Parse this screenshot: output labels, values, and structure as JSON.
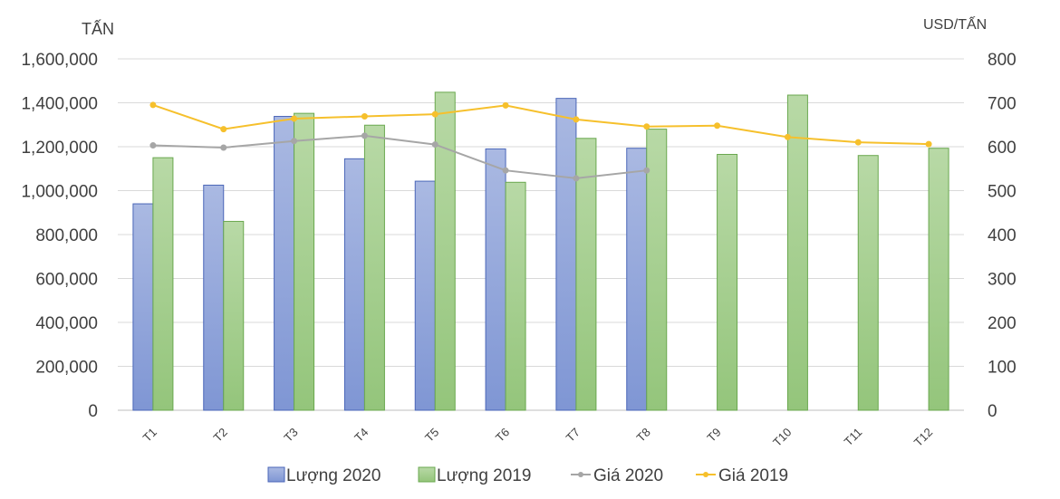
{
  "chart_data": {
    "type": "bar",
    "categories": [
      "T1",
      "T2",
      "T3",
      "T4",
      "T5",
      "T6",
      "T7",
      "T8",
      "T9",
      "T10",
      "T11",
      "T12"
    ],
    "y_left": {
      "label": "TẤN",
      "min": 0,
      "max": 1600000,
      "ticks": [
        "0",
        "200,000",
        "400,000",
        "600,000",
        "800,000",
        "1,000,000",
        "1,200,000",
        "1,400,000",
        "1,600,000"
      ],
      "tick_values": [
        0,
        200000,
        400000,
        600000,
        800000,
        1000000,
        1200000,
        1400000,
        1600000
      ]
    },
    "y_right": {
      "label": "USD/TẤN",
      "min": 0,
      "max": 800,
      "ticks": [
        "0",
        "100",
        "200",
        "300",
        "400",
        "500",
        "600",
        "700",
        "800"
      ],
      "tick_values": [
        0,
        100,
        200,
        300,
        400,
        500,
        600,
        700,
        800
      ]
    },
    "grid": true,
    "legend_position": "bottom",
    "series": [
      {
        "name": "Lượng 2020",
        "type": "bar",
        "axis": "left",
        "color": "#8fa3db",
        "values": [
          940000,
          1025000,
          1338000,
          1145000,
          1043000,
          1190000,
          1420000,
          1193000,
          null,
          null,
          null,
          null
        ]
      },
      {
        "name": "Lượng 2019",
        "type": "bar",
        "axis": "left",
        "color": "#a6cf8e",
        "values": [
          1150000,
          860000,
          1352000,
          1298000,
          1448000,
          1038000,
          1238000,
          1280000,
          1165000,
          1435000,
          1160000,
          1193000
        ]
      },
      {
        "name": "Giá 2020",
        "type": "line",
        "axis": "right",
        "color": "#a6a6a6",
        "values": [
          603,
          598,
          613,
          625,
          605,
          546,
          528,
          546,
          null,
          null,
          null,
          null
        ]
      },
      {
        "name": "Giá 2019",
        "type": "line",
        "axis": "right",
        "color": "#f6c02c",
        "values": [
          695,
          640,
          664,
          669,
          674,
          694,
          662,
          646,
          648,
          622,
          610,
          606
        ]
      }
    ]
  }
}
